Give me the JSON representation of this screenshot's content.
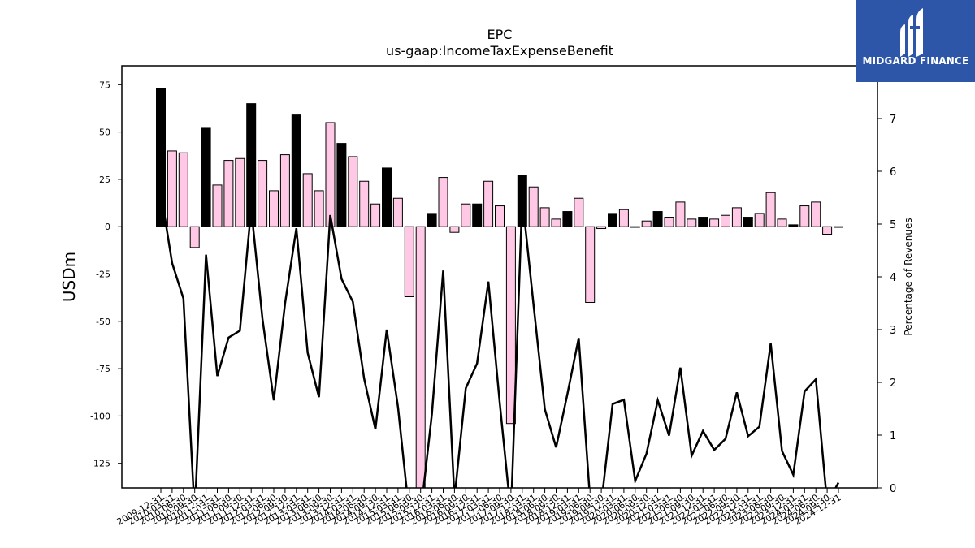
{
  "chart_data": {
    "type": "bar+line",
    "title": "EPC",
    "subtitle": "us-gaap:IncomeTaxExpenseBenefit",
    "ylabel": "USDm",
    "ylabel_right": "Percentage of Revenues",
    "ylim": [
      -138,
      85
    ],
    "ylim_right": [
      0,
      8
    ],
    "yticks": [
      -125,
      -100,
      -75,
      -50,
      -25,
      0,
      25,
      50,
      75
    ],
    "yticks_right": [
      0,
      1,
      2,
      3,
      4,
      5,
      6,
      7
    ],
    "categories": [
      "2009-12-31",
      "2010-03-31",
      "2010-06-30",
      "2010-09-30",
      "2010-12-31",
      "2011-03-31",
      "2011-06-30",
      "2011-09-30",
      "2011-12-31",
      "2012-03-31",
      "2012-06-30",
      "2012-09-30",
      "2012-12-31",
      "2013-03-31",
      "2013-06-30",
      "2013-09-30",
      "2013-12-31",
      "2014-03-31",
      "2014-06-30",
      "2014-09-30",
      "2014-12-31",
      "2015-03-31",
      "2015-06-30",
      "2015-09-30",
      "2015-12-31",
      "2016-03-31",
      "2016-06-30",
      "2016-09-30",
      "2016-12-31",
      "2017-03-31",
      "2017-06-30",
      "2017-09-30",
      "2017-12-31",
      "2018-03-31",
      "2018-06-30",
      "2018-09-30",
      "2018-12-31",
      "2019-03-31",
      "2019-06-30",
      "2019-09-30",
      "2019-12-31",
      "2020-03-31",
      "2020-06-30",
      "2020-09-30",
      "2020-12-31",
      "2021-03-31",
      "2021-06-30",
      "2021-09-30",
      "2021-12-31",
      "2022-03-31",
      "2022-06-30",
      "2022-09-30",
      "2022-12-31",
      "2023-03-31",
      "2023-06-30",
      "2023-09-30",
      "2023-12-31",
      "2024-03-31",
      "2024-06-30",
      "2024-09-30",
      "2024-12-31"
    ],
    "series": [
      {
        "kind": "bar",
        "values": [
          73,
          40,
          39,
          -11,
          52,
          22,
          35,
          36,
          65,
          35,
          19,
          38,
          59,
          28,
          19,
          55,
          44,
          37,
          24,
          12,
          31,
          15,
          -37,
          -138,
          7,
          26,
          -3,
          12,
          12,
          24,
          11,
          -104,
          27,
          21,
          10,
          4,
          8,
          15,
          -40,
          -1,
          7,
          9,
          0,
          3,
          8,
          5,
          13,
          4,
          5,
          4,
          6,
          10,
          5,
          7,
          18,
          4,
          1,
          11,
          13,
          -4,
          0
        ],
        "colors": [
          "#000000",
          "#ffc8e4",
          "#ffc8e4",
          "#ffc8e4",
          "#000000",
          "#ffc8e4",
          "#ffc8e4",
          "#ffc8e4",
          "#000000",
          "#ffc8e4",
          "#ffc8e4",
          "#ffc8e4",
          "#000000",
          "#ffc8e4",
          "#ffc8e4",
          "#ffc8e4",
          "#000000",
          "#ffc8e4",
          "#ffc8e4",
          "#ffc8e4",
          "#000000",
          "#ffc8e4",
          "#ffc8e4",
          "#ffc8e4",
          "#000000",
          "#ffc8e4",
          "#ffc8e4",
          "#ffc8e4",
          "#000000",
          "#ffc8e4",
          "#ffc8e4",
          "#ffc8e4",
          "#000000",
          "#ffc8e4",
          "#ffc8e4",
          "#ffc8e4",
          "#000000",
          "#ffc8e4",
          "#ffc8e4",
          "#ffc8e4",
          "#000000",
          "#ffc8e4",
          "#ffc8e4",
          "#ffc8e4",
          "#000000",
          "#ffc8e4",
          "#ffc8e4",
          "#ffc8e4",
          "#000000",
          "#ffc8e4",
          "#ffc8e4",
          "#ffc8e4",
          "#000000",
          "#ffc8e4",
          "#ffc8e4",
          "#ffc8e4",
          "#000000",
          "#ffc8e4",
          "#ffc8e4",
          "#ffc8e4",
          "#000000"
        ]
      },
      {
        "kind": "line",
        "axis": "right",
        "values": [
          5.6,
          4.26,
          3.59,
          -0.5,
          4.42,
          2.12,
          2.85,
          2.98,
          5.3,
          3.2,
          1.66,
          3.5,
          4.92,
          2.56,
          1.72,
          5.17,
          3.96,
          3.53,
          2.07,
          1.11,
          3.0,
          1.53,
          -0.5,
          -0.5,
          1.4,
          4.12,
          -0.2,
          1.89,
          2.36,
          3.91,
          1.63,
          -0.5,
          5.5,
          3.47,
          1.49,
          0.77,
          1.78,
          2.84,
          -0.2,
          -0.3,
          1.59,
          1.67,
          0.13,
          0.65,
          1.66,
          0.99,
          2.28,
          0.61,
          1.08,
          0.72,
          0.93,
          1.81,
          0.98,
          1.16,
          2.74,
          0.7,
          0.25,
          1.83,
          2.06,
          -0.3,
          0.1
        ]
      }
    ],
    "grid": false,
    "colors": {
      "bar_black": "#000000",
      "bar_pink": "#ffc8e4",
      "line": "#000000"
    }
  },
  "logo": {
    "text": "MIDGARD FINANCE",
    "color": "#2d56a8"
  }
}
